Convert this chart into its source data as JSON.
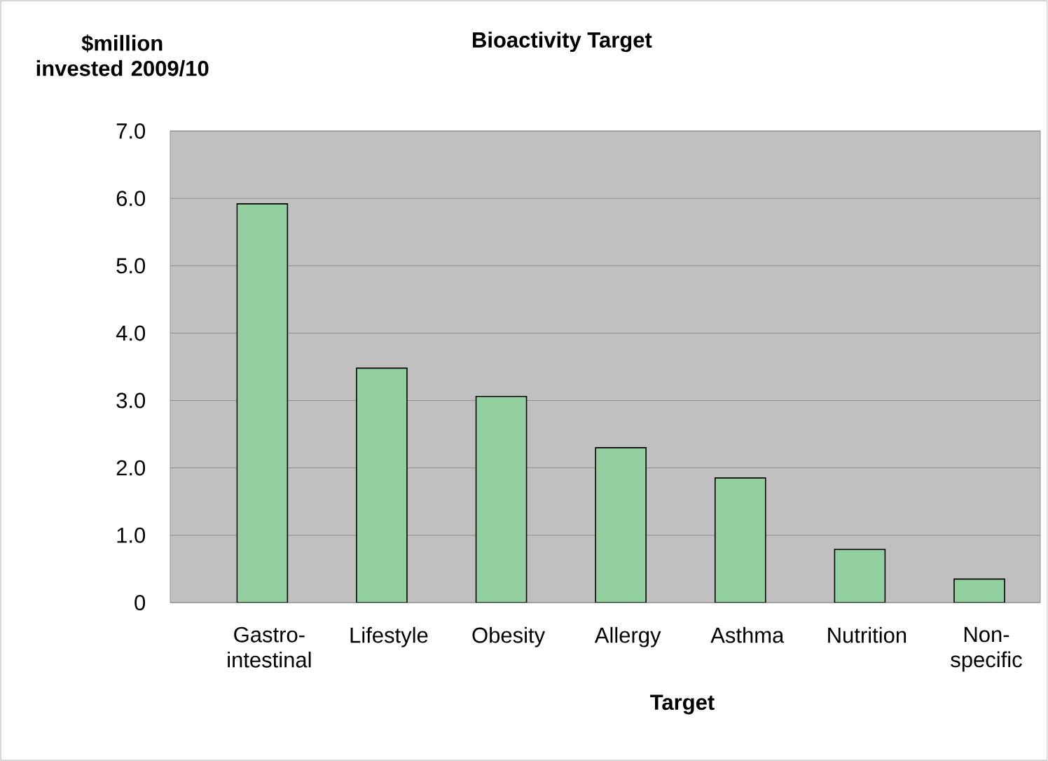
{
  "chart_data": {
    "type": "bar",
    "title": "Bioactivity Target",
    "xlabel": "Target",
    "ylabel": "$million invested 2009/10",
    "categories": [
      "Gastro-intestinal",
      "Lifestyle",
      "Obesity",
      "Allergy",
      "Asthma",
      "Nutrition",
      "Non-specific"
    ],
    "values": [
      5.92,
      3.48,
      3.06,
      2.3,
      1.85,
      0.79,
      0.35
    ],
    "color": "#92d09f",
    "ylim": [
      0,
      7
    ],
    "yticks": [
      0,
      {
        "value": 1,
        "label": "1.0"
      },
      {
        "value": 2,
        "label": "2.0"
      },
      {
        "value": 3,
        "label": "3.0"
      },
      {
        "value": 4,
        "label": "4.0"
      },
      {
        "value": 5,
        "label": "5.0"
      },
      {
        "value": 6,
        "label": "6.0"
      },
      {
        "value": 7,
        "label": "7.0"
      }
    ],
    "grid": "y"
  }
}
